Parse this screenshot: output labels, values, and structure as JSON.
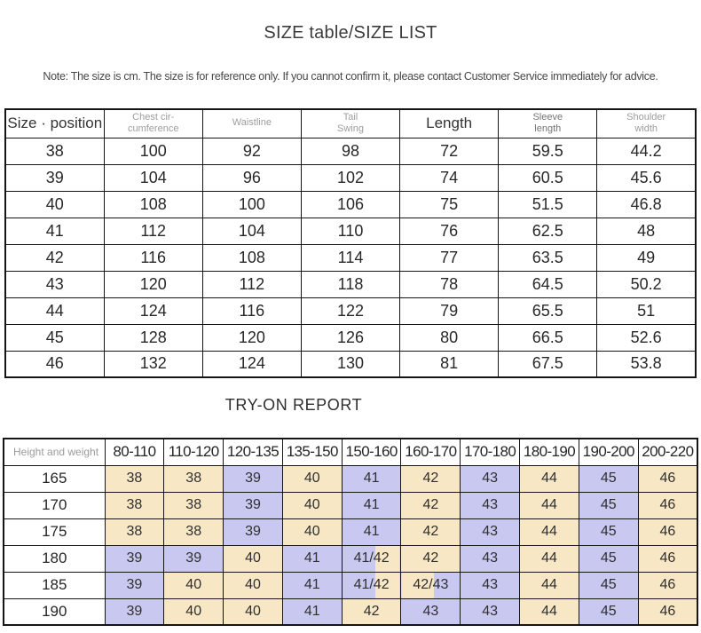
{
  "page": {
    "title": "SIZE table/SIZE LIST",
    "note": "Note: The size is cm. The size is for reference only. If you cannot confirm it, please contact Customer Service immediately for advice.",
    "tryon_title": "TRY-ON REPORT"
  },
  "colors": {
    "cream": "#F8E7C4",
    "purple": "#C8C8F0",
    "border": "#151515",
    "text_dark": "#282828",
    "text_gray": "#9d9d9d"
  },
  "size_table": {
    "columns": [
      {
        "label": "Size · position",
        "style": "dark"
      },
      {
        "label": "Chest cir-\ncumference",
        "style": "gray"
      },
      {
        "label": "Waistline",
        "style": "gray"
      },
      {
        "label": "Tail\nSwing",
        "style": "gray"
      },
      {
        "label": "Length",
        "style": "dark"
      },
      {
        "label": "Sleeve\nlength",
        "style": "gray2"
      },
      {
        "label": "Shoulder\nwidth",
        "style": "gray"
      }
    ],
    "rows": [
      [
        "38",
        "100",
        "92",
        "98",
        "72",
        "59.5",
        "44.2"
      ],
      [
        "39",
        "104",
        "96",
        "102",
        "74",
        "60.5",
        "45.6"
      ],
      [
        "40",
        "108",
        "100",
        "106",
        "75",
        "51.5",
        "46.8"
      ],
      [
        "41",
        "112",
        "104",
        "110",
        "76",
        "62.5",
        "48"
      ],
      [
        "42",
        "116",
        "108",
        "114",
        "77",
        "63.5",
        "49"
      ],
      [
        "43",
        "120",
        "112",
        "118",
        "78",
        "64.5",
        "50.2"
      ],
      [
        "44",
        "124",
        "116",
        "122",
        "79",
        "65.5",
        "51"
      ],
      [
        "45",
        "128",
        "120",
        "126",
        "80",
        "66.5",
        "52.6"
      ],
      [
        "46",
        "132",
        "124",
        "130",
        "81",
        "67.5",
        "53.8"
      ]
    ]
  },
  "tryon_table": {
    "corner_label": "Height and weight",
    "weight_columns": [
      "80-110",
      "110-120",
      "120-135",
      "135-150",
      "150-160",
      "160-170",
      "170-180",
      "180-190",
      "190-200",
      "200-220"
    ],
    "rows": [
      {
        "height": "165",
        "cells": [
          {
            "v": "38",
            "bg": "c"
          },
          {
            "v": "38",
            "bg": "c"
          },
          {
            "v": "39",
            "bg": "p"
          },
          {
            "v": "40",
            "bg": "c"
          },
          {
            "v": "41",
            "bg": "p"
          },
          {
            "v": "42",
            "bg": "c"
          },
          {
            "v": "43",
            "bg": "p"
          },
          {
            "v": "44",
            "bg": "c"
          },
          {
            "v": "45",
            "bg": "p"
          },
          {
            "v": "46",
            "bg": "c"
          }
        ]
      },
      {
        "height": "170",
        "cells": [
          {
            "v": "38",
            "bg": "c"
          },
          {
            "v": "38",
            "bg": "c"
          },
          {
            "v": "39",
            "bg": "p"
          },
          {
            "v": "40",
            "bg": "c"
          },
          {
            "v": "41",
            "bg": "p"
          },
          {
            "v": "42",
            "bg": "c"
          },
          {
            "v": "43",
            "bg": "p"
          },
          {
            "v": "44",
            "bg": "c"
          },
          {
            "v": "45",
            "bg": "p"
          },
          {
            "v": "46",
            "bg": "c"
          }
        ]
      },
      {
        "height": "175",
        "cells": [
          {
            "v": "38",
            "bg": "c"
          },
          {
            "v": "38",
            "bg": "c"
          },
          {
            "v": "39",
            "bg": "p"
          },
          {
            "v": "40",
            "bg": "c"
          },
          {
            "v": "41",
            "bg": "p"
          },
          {
            "v": "42",
            "bg": "c"
          },
          {
            "v": "43",
            "bg": "p"
          },
          {
            "v": "44",
            "bg": "c"
          },
          {
            "v": "45",
            "bg": "p"
          },
          {
            "v": "46",
            "bg": "c"
          }
        ]
      },
      {
        "height": "180",
        "cells": [
          {
            "v": "39",
            "bg": "p"
          },
          {
            "v": "39",
            "bg": "p"
          },
          {
            "v": "40",
            "bg": "c"
          },
          {
            "v": "41",
            "bg": "p"
          },
          {
            "v": "41/42",
            "bg": "pc"
          },
          {
            "v": "42",
            "bg": "c"
          },
          {
            "v": "43",
            "bg": "p"
          },
          {
            "v": "44",
            "bg": "c"
          },
          {
            "v": "45",
            "bg": "p"
          },
          {
            "v": "46",
            "bg": "c"
          }
        ]
      },
      {
        "height": "185",
        "cells": [
          {
            "v": "39",
            "bg": "p"
          },
          {
            "v": "40",
            "bg": "c"
          },
          {
            "v": "40",
            "bg": "c"
          },
          {
            "v": "41",
            "bg": "p"
          },
          {
            "v": "41/42",
            "bg": "pc"
          },
          {
            "v": "42/43",
            "bg": "cp"
          },
          {
            "v": "43",
            "bg": "p"
          },
          {
            "v": "44",
            "bg": "c"
          },
          {
            "v": "45",
            "bg": "p"
          },
          {
            "v": "46",
            "bg": "c"
          }
        ]
      },
      {
        "height": "190",
        "cells": [
          {
            "v": "39",
            "bg": "p"
          },
          {
            "v": "40",
            "bg": "c"
          },
          {
            "v": "40",
            "bg": "c"
          },
          {
            "v": "41",
            "bg": "p"
          },
          {
            "v": "42",
            "bg": "c"
          },
          {
            "v": "43",
            "bg": "p"
          },
          {
            "v": "43",
            "bg": "p"
          },
          {
            "v": "44",
            "bg": "c"
          },
          {
            "v": "45",
            "bg": "p"
          },
          {
            "v": "46",
            "bg": "c"
          }
        ]
      }
    ]
  }
}
